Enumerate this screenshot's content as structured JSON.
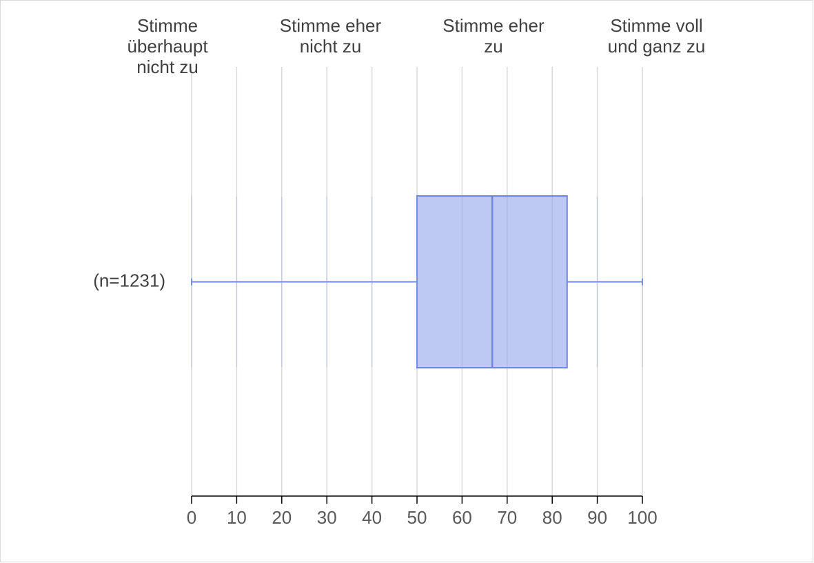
{
  "chart_data": {
    "type": "boxplot",
    "top_labels": [
      "Stimme überhaupt nicht zu",
      "Stimme eher nicht zu",
      "Stimme eher zu",
      "Stimme voll und ganz zu"
    ],
    "categories": [
      "(n=1231)"
    ],
    "min": [
      0
    ],
    "q1": [
      50
    ],
    "median": [
      66.7
    ],
    "q3": [
      83.3
    ],
    "max": [
      100
    ],
    "color": "#6f86e0",
    "fill": "#b9c6f0",
    "xlim": [
      0,
      100
    ],
    "xticks": [
      0,
      10,
      20,
      30,
      40,
      50,
      60,
      70,
      80,
      90,
      100
    ],
    "grid": true
  }
}
